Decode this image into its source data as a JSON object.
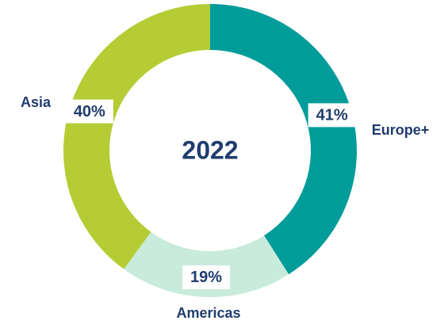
{
  "chart_data": {
    "type": "donut",
    "title": "2022",
    "categories": [
      "Europe+",
      "Americas",
      "Asia"
    ],
    "values": [
      41,
      19,
      40
    ],
    "value_labels": [
      "41%",
      "19%",
      "40%"
    ],
    "colors": [
      "#009c9a",
      "#c8ebdc",
      "#b5cc34"
    ]
  }
}
